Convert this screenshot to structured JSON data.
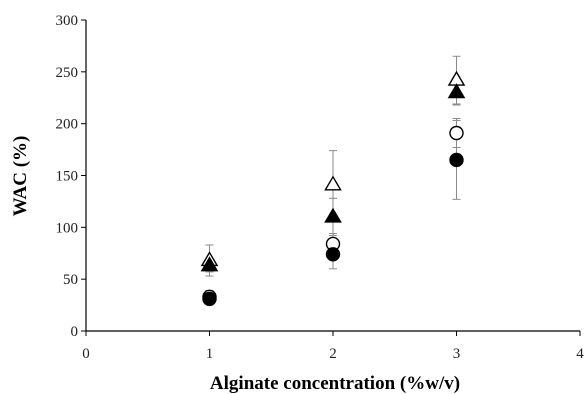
{
  "chart_data": {
    "type": "scatter",
    "title": "",
    "xlabel": "Alginate concentration (%w/v)",
    "ylabel": "WAC (%)",
    "xlim": [
      0,
      4
    ],
    "ylim": [
      0,
      300
    ],
    "x_ticks": [
      "0",
      "1",
      "2",
      "3",
      "4"
    ],
    "y_ticks": [
      "0",
      "50",
      "100",
      "150",
      "200",
      "250",
      "300"
    ],
    "grid": false,
    "legend": "none",
    "series": [
      {
        "marker": "triangle-open",
        "x": [
          1,
          2,
          3
        ],
        "y": [
          68,
          141,
          242
        ],
        "error": [
          15,
          33,
          23
        ]
      },
      {
        "marker": "triangle-filled",
        "x": [
          1,
          2,
          3
        ],
        "y": [
          63,
          110,
          230
        ],
        "error": [
          6,
          18,
          12
        ]
      },
      {
        "marker": "circle-open",
        "x": [
          1,
          2,
          3
        ],
        "y": [
          33,
          84,
          191
        ],
        "error": [
          6,
          10,
          14
        ]
      },
      {
        "marker": "circle-filled",
        "x": [
          1,
          2,
          3
        ],
        "y": [
          31,
          74,
          165
        ],
        "error": [
          5,
          14,
          38
        ]
      }
    ],
    "colors": {
      "marker": "#000000",
      "error_bar": "#8a8a8a",
      "axis": "#000000"
    }
  }
}
